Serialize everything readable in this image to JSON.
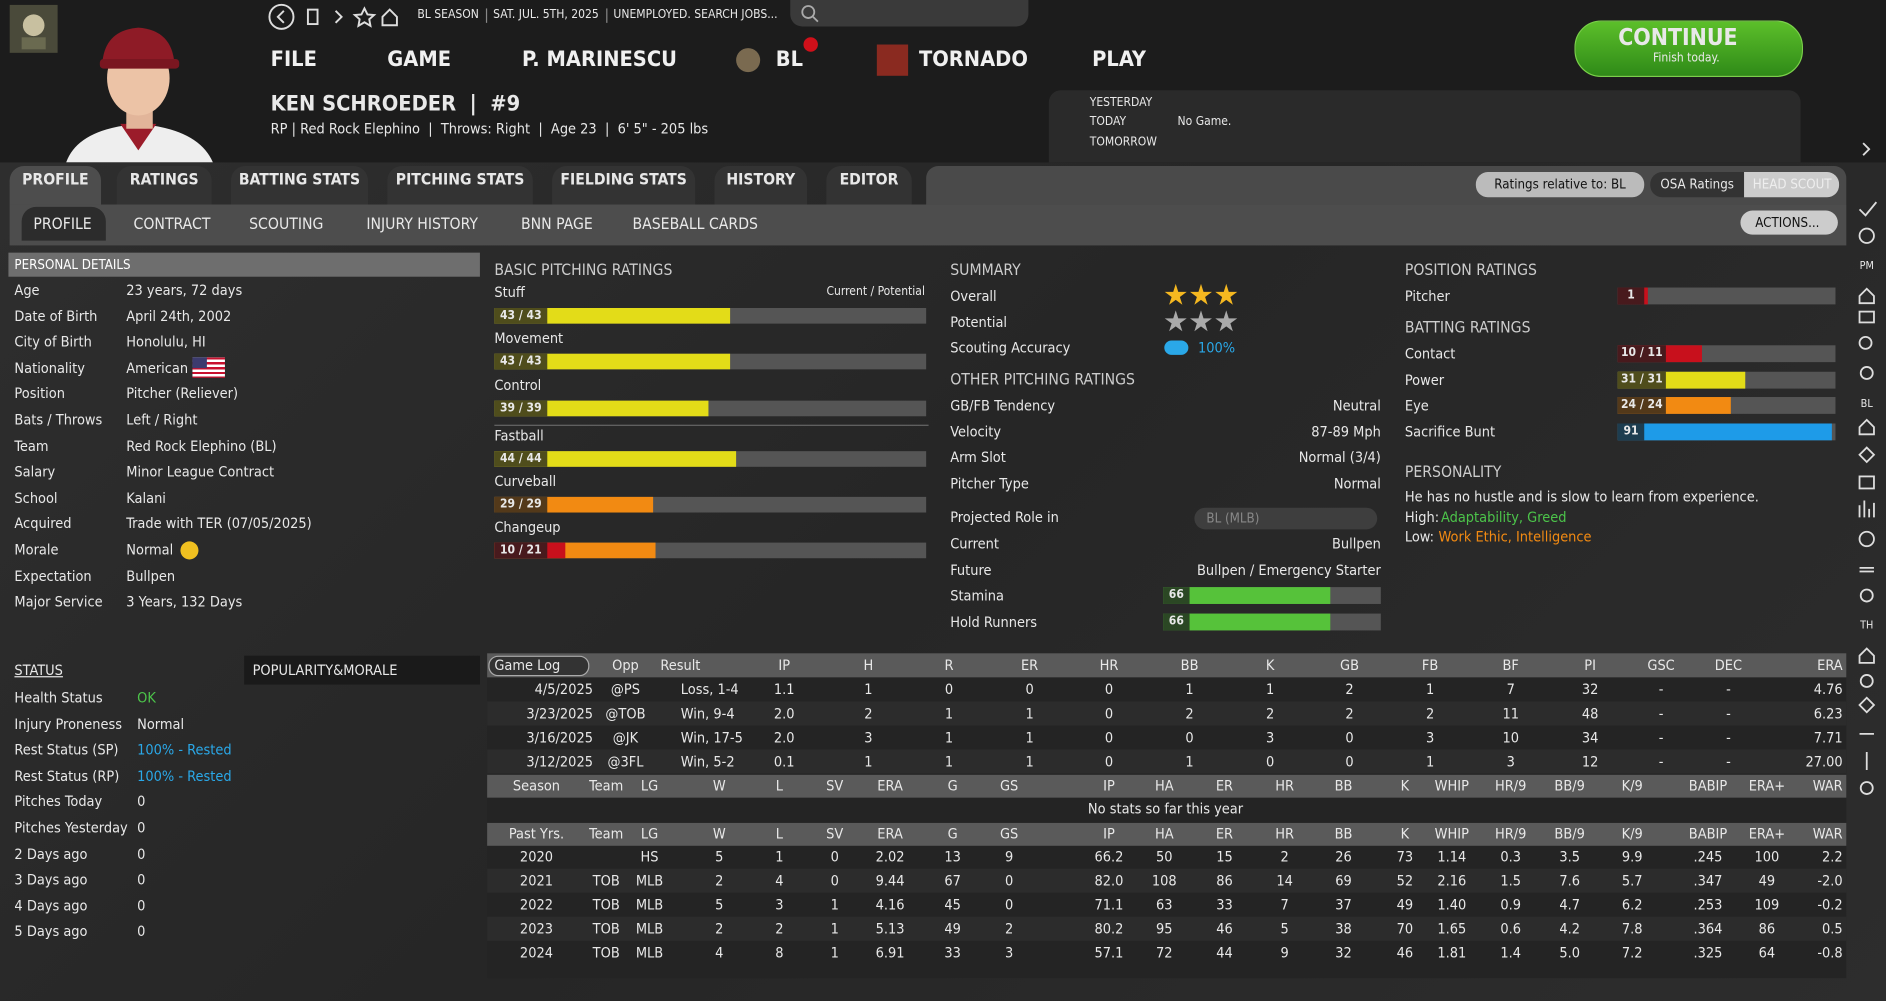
{
  "top_bar": {
    "season": "BL SEASON",
    "date": "SAT. JUL. 5TH, 2025",
    "status": "UNEMPLOYED. SEARCH JOBS..."
  },
  "menu": [
    "FILE",
    "GAME",
    "P. MARINESCU",
    "BL",
    "TORNADO",
    "PLAY"
  ],
  "continue_button": {
    "label": "CONTINUE",
    "sublabel": "Finish today."
  },
  "player": {
    "name": "KEN SCHROEDER  |  #9",
    "info": "RP | Red Rock Elephino  |  Throws: Right  |  Age 23  |  6' 5\" - 205 lbs"
  },
  "schedule": {
    "yesterday": "YESTERDAY",
    "today": "TODAY",
    "today_game": "No Game.",
    "tomorrow": "TOMORROW"
  },
  "main_tabs": [
    "PROFILE",
    "RATINGS",
    "BATTING STATS",
    "PITCHING STATS",
    "FIELDING STATS",
    "HISTORY",
    "EDITOR"
  ],
  "ratings_controls": {
    "relative": "Ratings relative to: BL",
    "osa": "OSA Ratings",
    "scout": "HEAD SCOUT"
  },
  "sub_tabs": [
    "PROFILE",
    "CONTRACT",
    "SCOUTING",
    "INJURY HISTORY",
    "BNN PAGE",
    "BASEBALL CARDS"
  ],
  "actions": "ACTIONS...",
  "personal_details": {
    "title": "PERSONAL DETAILS",
    "rows": [
      [
        "Age",
        "23 years, 72 days"
      ],
      [
        "Date of Birth",
        "April 24th, 2002"
      ],
      [
        "City of Birth",
        "Honolulu, HI"
      ],
      [
        "Nationality",
        "American"
      ],
      [
        "Position",
        "Pitcher (Reliever)"
      ],
      [
        "Bats / Throws",
        "Left / Right"
      ],
      [
        "Team",
        "Red Rock Elephino (BL)"
      ],
      [
        "Salary",
        "Minor League Contract"
      ],
      [
        "School",
        "Kalani"
      ],
      [
        "Acquired",
        "Trade with TER (07/05/2025)"
      ],
      [
        "Morale",
        "Normal"
      ],
      [
        "Expectation",
        "Bullpen"
      ],
      [
        "Major Service",
        "3 Years, 132 Days"
      ]
    ]
  },
  "basic_pitching": {
    "title": "BASIC PITCHING RATINGS",
    "legend": "Current / Potential",
    "ratings": [
      {
        "name": "Stuff",
        "label": "43 / 43",
        "current": 43,
        "potential": 43
      },
      {
        "name": "Movement",
        "label": "43 / 43",
        "current": 43,
        "potential": 43
      },
      {
        "name": "Control",
        "label": "39 / 39",
        "current": 39,
        "potential": 39
      },
      {
        "name": "Fastball",
        "label": "44 / 44",
        "current": 44,
        "potential": 44
      },
      {
        "name": "Curveball",
        "label": "29 / 29",
        "current": 29,
        "potential": 29
      },
      {
        "name": "Changeup",
        "label": "10 / 21",
        "current": 10,
        "potential": 21
      }
    ]
  },
  "summary": {
    "title": "SUMMARY",
    "overall": {
      "label": "Overall",
      "stars": 3
    },
    "potential": {
      "label": "Potential",
      "stars": 3
    },
    "scouting": {
      "label": "Scouting Accuracy",
      "value": "100%"
    }
  },
  "other_pitching": {
    "title": "OTHER PITCHING RATINGS",
    "rows": [
      [
        "GB/FB Tendency",
        "Neutral"
      ],
      [
        "Velocity",
        "87-89 Mph"
      ],
      [
        "Arm Slot",
        "Normal (3/4)"
      ],
      [
        "Pitcher Type",
        "Normal"
      ]
    ],
    "projected": {
      "label": "Projected Role in",
      "league": "BL (MLB)"
    },
    "roles": [
      [
        "Current",
        "Bullpen"
      ],
      [
        "Future",
        "Bullpen / Emergency Starter"
      ]
    ],
    "bars": [
      {
        "name": "Stamina",
        "value": 66
      },
      {
        "name": "Hold Runners",
        "value": 66
      }
    ]
  },
  "position_ratings": {
    "title": "POSITION RATINGS",
    "rows": [
      {
        "name": "Pitcher",
        "current": 1
      }
    ]
  },
  "batting_ratings": {
    "title": "BATTING RATINGS",
    "rows": [
      {
        "name": "Contact",
        "label": "10 / 11",
        "current": 10,
        "potential": 11
      },
      {
        "name": "Power",
        "label": "31 / 31",
        "current": 31,
        "potential": 31
      },
      {
        "name": "Eye",
        "label": "24 / 24",
        "current": 24,
        "potential": 24
      },
      {
        "name": "Sacrifice Bunt",
        "current": 91
      }
    ]
  },
  "personality": {
    "title": "PERSONALITY",
    "text": "He has no hustle and is slow to learn from experience.",
    "high_label": "High:",
    "high": "Adaptability, Greed",
    "low_label": "Low:",
    "low": "Work Ethic, Intelligence"
  },
  "status": {
    "title": "STATUS",
    "popularity_tab": "POPULARITY&MORALE",
    "rows": [
      [
        "Health Status",
        "OK"
      ],
      [
        "Injury Proneness",
        "Normal"
      ],
      [
        "Rest Status (SP)",
        "100% - Rested"
      ],
      [
        "Rest Status (RP)",
        "100% - Rested"
      ],
      [
        "Pitches Today",
        "0"
      ],
      [
        "Pitches Yesterday",
        "0"
      ],
      [
        "2 Days ago",
        "0"
      ],
      [
        "3 Days ago",
        "0"
      ],
      [
        "4 Days ago",
        "0"
      ],
      [
        "5 Days ago",
        "0"
      ]
    ]
  },
  "game_log": {
    "selector": "Game Log",
    "columns": [
      "Opp",
      "Result",
      "IP",
      "H",
      "R",
      "ER",
      "HR",
      "BB",
      "K",
      "GB",
      "FB",
      "BF",
      "PI",
      "GSC",
      "DEC",
      "ERA"
    ],
    "rows": [
      [
        "4/5/2025",
        "@PS",
        "Loss, 1-4",
        "1.1",
        "1",
        "0",
        "0",
        "0",
        "1",
        "1",
        "2",
        "1",
        "7",
        "32",
        "-",
        "-",
        "4.76"
      ],
      [
        "3/23/2025",
        "@TOB",
        "Win, 9-4",
        "2.0",
        "2",
        "1",
        "1",
        "0",
        "2",
        "2",
        "2",
        "2",
        "11",
        "48",
        "-",
        "-",
        "6.23"
      ],
      [
        "3/16/2025",
        "@JK",
        "Win, 17-5",
        "2.0",
        "3",
        "1",
        "1",
        "0",
        "0",
        "3",
        "0",
        "3",
        "10",
        "34",
        "-",
        "-",
        "7.71"
      ],
      [
        "3/12/2025",
        "@3FL",
        "Win, 5-2",
        "0.1",
        "1",
        "1",
        "1",
        "0",
        "1",
        "0",
        "0",
        "1",
        "3",
        "12",
        "-",
        "-",
        "27.00"
      ]
    ]
  },
  "season_stats": {
    "columns": [
      "Season",
      "Team",
      "LG",
      "W",
      "L",
      "SV",
      "ERA",
      "G",
      "GS",
      "IP",
      "HA",
      "ER",
      "HR",
      "BB",
      "K",
      "WHIP",
      "HR/9",
      "BB/9",
      "K/9",
      "BABIP",
      "ERA+",
      "WAR"
    ],
    "message": "No stats so far this year"
  },
  "past_years": {
    "columns": [
      "Past Yrs.",
      "Team",
      "LG",
      "W",
      "L",
      "SV",
      "ERA",
      "G",
      "GS",
      "IP",
      "HA",
      "ER",
      "HR",
      "BB",
      "K",
      "WHIP",
      "HR/9",
      "BB/9",
      "K/9",
      "BABIP",
      "ERA+",
      "WAR"
    ],
    "rows": [
      [
        "2020",
        null,
        "HS",
        "5",
        "1",
        "0",
        "2.02",
        "13",
        "9",
        "66.2",
        "50",
        "15",
        "2",
        "26",
        "73",
        "1.14",
        "0.3",
        "3.5",
        "9.9",
        ".245",
        "100",
        "2.2"
      ],
      [
        "2021",
        "TOB",
        "MLB",
        "2",
        "4",
        "0",
        "9.44",
        "67",
        "0",
        "82.0",
        "108",
        "86",
        "14",
        "69",
        "52",
        "2.16",
        "1.5",
        "7.6",
        "5.7",
        ".347",
        "49",
        "-2.0"
      ],
      [
        "2022",
        "TOB",
        "MLB",
        "5",
        "3",
        "1",
        "4.16",
        "45",
        "0",
        "71.1",
        "63",
        "33",
        "7",
        "37",
        "49",
        "1.40",
        "0.9",
        "4.7",
        "6.2",
        ".253",
        "109",
        "-0.2"
      ],
      [
        "2023",
        "TOB",
        "MLB",
        "2",
        "2",
        "1",
        "5.13",
        "49",
        "2",
        "80.2",
        "95",
        "46",
        "5",
        "38",
        "70",
        "1.65",
        "0.6",
        "4.2",
        "7.8",
        ".364",
        "86",
        "0.5"
      ],
      [
        "2024",
        "TOB",
        "MLB",
        "4",
        "8",
        "1",
        "6.91",
        "33",
        "3",
        "57.1",
        "72",
        "44",
        "9",
        "32",
        "46",
        "1.81",
        "1.4",
        "5.0",
        "7.2",
        ".325",
        "64",
        "-0.8"
      ]
    ]
  },
  "sidebar_labels": [
    "PM",
    "BL",
    "TH"
  ]
}
